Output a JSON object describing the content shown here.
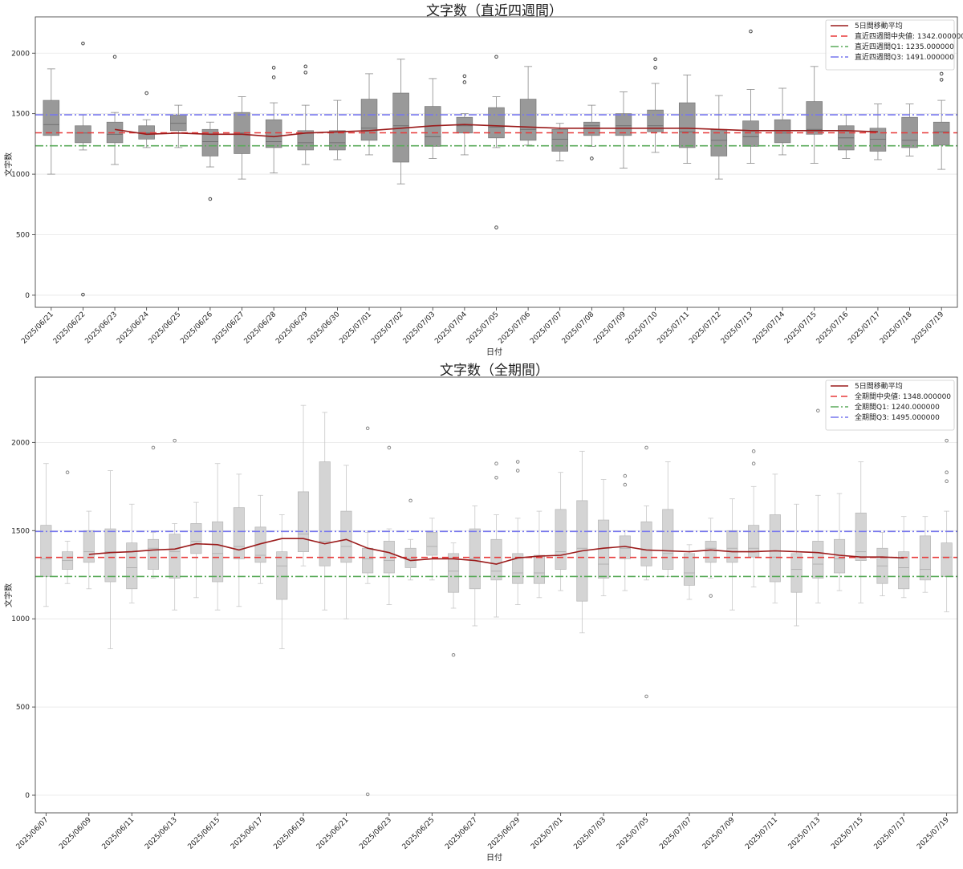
{
  "chart_data": [
    {
      "type": "box",
      "title": "文字数（直近四週間）",
      "xlabel": "日付",
      "ylabel": "文字数",
      "ylim": [
        -100,
        2300
      ],
      "yticks": [
        0,
        500,
        1000,
        1500,
        2000
      ],
      "grid": "y",
      "legend_placement": "top-right",
      "box_color": "#999999",
      "categories": [
        "2025/06/21",
        "2025/06/22",
        "2025/06/23",
        "2025/06/24",
        "2025/06/25",
        "2025/06/26",
        "2025/06/27",
        "2025/06/28",
        "2025/06/29",
        "2025/06/30",
        "2025/07/01",
        "2025/07/02",
        "2025/07/03",
        "2025/07/04",
        "2025/07/05",
        "2025/07/06",
        "2025/07/07",
        "2025/07/08",
        "2025/07/09",
        "2025/07/10",
        "2025/07/11",
        "2025/07/12",
        "2025/07/13",
        "2025/07/14",
        "2025/07/15",
        "2025/07/16",
        "2025/07/17",
        "2025/07/18",
        "2025/07/19"
      ],
      "tick_labels": [
        "2025/06/21",
        "2025/06/22",
        "2025/06/23",
        "2025/06/24",
        "2025/06/25",
        "2025/06/26",
        "2025/06/27",
        "2025/06/28",
        "2025/06/29",
        "2025/06/30",
        "2025/07/01",
        "2025/07/02",
        "2025/07/03",
        "2025/07/04",
        "2025/07/05",
        "2025/07/06",
        "2025/07/07",
        "2025/07/08",
        "2025/07/09",
        "2025/07/10",
        "2025/07/11",
        "2025/07/12",
        "2025/07/13",
        "2025/07/14",
        "2025/07/15",
        "2025/07/16",
        "2025/07/17",
        "2025/07/18",
        "2025/07/19"
      ],
      "boxes": [
        {
          "q1": 1320,
          "med": 1410,
          "q3": 1610,
          "wl": 1000,
          "wh": 1870,
          "out": []
        },
        {
          "q1": 1260,
          "med": 1340,
          "q3": 1400,
          "wl": 1200,
          "wh": 1490,
          "out": [
            2080,
            5
          ]
        },
        {
          "q1": 1260,
          "med": 1330,
          "q3": 1430,
          "wl": 1080,
          "wh": 1510,
          "out": [
            1970
          ]
        },
        {
          "q1": 1290,
          "med": 1340,
          "q3": 1400,
          "wl": 1220,
          "wh": 1450,
          "out": [
            1670
          ]
        },
        {
          "q1": 1360,
          "med": 1420,
          "q3": 1490,
          "wl": 1220,
          "wh": 1570,
          "out": []
        },
        {
          "q1": 1150,
          "med": 1270,
          "q3": 1370,
          "wl": 1060,
          "wh": 1430,
          "out": [
            795
          ]
        },
        {
          "q1": 1170,
          "med": 1340,
          "q3": 1510,
          "wl": 960,
          "wh": 1640,
          "out": []
        },
        {
          "q1": 1220,
          "med": 1270,
          "q3": 1450,
          "wl": 1010,
          "wh": 1590,
          "out": [
            1880,
            1800
          ]
        },
        {
          "q1": 1200,
          "med": 1260,
          "q3": 1360,
          "wl": 1080,
          "wh": 1570,
          "out": [
            1890,
            1840
          ]
        },
        {
          "q1": 1200,
          "med": 1260,
          "q3": 1360,
          "wl": 1120,
          "wh": 1610,
          "out": []
        },
        {
          "q1": 1280,
          "med": 1380,
          "q3": 1620,
          "wl": 1160,
          "wh": 1830,
          "out": []
        },
        {
          "q1": 1100,
          "med": 1400,
          "q3": 1670,
          "wl": 920,
          "wh": 1950,
          "out": []
        },
        {
          "q1": 1230,
          "med": 1310,
          "q3": 1560,
          "wl": 1130,
          "wh": 1790,
          "out": []
        },
        {
          "q1": 1340,
          "med": 1400,
          "q3": 1470,
          "wl": 1160,
          "wh": 1500,
          "out": [
            1810,
            1760
          ]
        },
        {
          "q1": 1300,
          "med": 1390,
          "q3": 1550,
          "wl": 1220,
          "wh": 1640,
          "out": [
            1970,
            560
          ]
        },
        {
          "q1": 1280,
          "med": 1370,
          "q3": 1620,
          "wl": 1240,
          "wh": 1890,
          "out": []
        },
        {
          "q1": 1190,
          "med": 1290,
          "q3": 1370,
          "wl": 1110,
          "wh": 1420,
          "out": []
        },
        {
          "q1": 1320,
          "med": 1400,
          "q3": 1430,
          "wl": 1230,
          "wh": 1570,
          "out": [
            1130
          ]
        },
        {
          "q1": 1320,
          "med": 1400,
          "q3": 1500,
          "wl": 1050,
          "wh": 1680,
          "out": []
        },
        {
          "q1": 1350,
          "med": 1400,
          "q3": 1530,
          "wl": 1180,
          "wh": 1750,
          "out": [
            1950,
            1880
          ]
        },
        {
          "q1": 1220,
          "med": 1350,
          "q3": 1590,
          "wl": 1090,
          "wh": 1820,
          "out": []
        },
        {
          "q1": 1150,
          "med": 1280,
          "q3": 1370,
          "wl": 960,
          "wh": 1650,
          "out": []
        },
        {
          "q1": 1230,
          "med": 1310,
          "q3": 1440,
          "wl": 1090,
          "wh": 1700,
          "out": [
            2180
          ]
        },
        {
          "q1": 1260,
          "med": 1340,
          "q3": 1450,
          "wl": 1160,
          "wh": 1710,
          "out": []
        },
        {
          "q1": 1330,
          "med": 1370,
          "q3": 1600,
          "wl": 1090,
          "wh": 1890,
          "out": []
        },
        {
          "q1": 1200,
          "med": 1300,
          "q3": 1400,
          "wl": 1130,
          "wh": 1490,
          "out": []
        },
        {
          "q1": 1190,
          "med": 1290,
          "q3": 1380,
          "wl": 1120,
          "wh": 1580,
          "out": []
        },
        {
          "q1": 1220,
          "med": 1280,
          "q3": 1470,
          "wl": 1150,
          "wh": 1580,
          "out": []
        },
        {
          "q1": 1240,
          "med": 1350,
          "q3": 1430,
          "wl": 1040,
          "wh": 1610,
          "out": [
            1830,
            1780
          ]
        }
      ],
      "series": [
        {
          "name": "5日間移動平均",
          "kind": "line",
          "color": "#9b1b1b",
          "values": [
            null,
            null,
            1370,
            1330,
            1340,
            1330,
            1330,
            1310,
            1340,
            1350,
            1360,
            1380,
            1400,
            1410,
            1400,
            1390,
            1380,
            1380,
            1380,
            1380,
            1380,
            1370,
            1360,
            1360,
            1360,
            1360,
            1350,
            null,
            null
          ]
        },
        {
          "name": "直近四週間中央値: 1342.000000",
          "kind": "hline",
          "value": 1342,
          "color": "#e83a3a",
          "dash": "8 5"
        },
        {
          "name": "直近四週間Q1: 1235.000000",
          "kind": "hline",
          "value": 1235,
          "color": "#5aaa5a",
          "dash": "10 3 2 3"
        },
        {
          "name": "直近四週間Q3: 1491.000000",
          "kind": "hline",
          "value": 1491,
          "color": "#7777ee",
          "dash": "10 3 2 3"
        }
      ]
    },
    {
      "type": "box",
      "title": "文字数（全期間）",
      "xlabel": "日付",
      "ylabel": "文字数",
      "ylim": [
        -100,
        2370
      ],
      "yticks": [
        0,
        500,
        1000,
        1500,
        2000
      ],
      "grid": "y",
      "legend_placement": "top-right",
      "box_color": "#d4d4d4",
      "categories": [
        "2025/06/07",
        "2025/06/08",
        "2025/06/09",
        "2025/06/10",
        "2025/06/11",
        "2025/06/12",
        "2025/06/13",
        "2025/06/14",
        "2025/06/15",
        "2025/06/16",
        "2025/06/17",
        "2025/06/18",
        "2025/06/19",
        "2025/06/20",
        "2025/06/21",
        "2025/06/22",
        "2025/06/23",
        "2025/06/24",
        "2025/06/25",
        "2025/06/26",
        "2025/06/27",
        "2025/06/28",
        "2025/06/29",
        "2025/06/30",
        "2025/07/01",
        "2025/07/02",
        "2025/07/03",
        "2025/07/04",
        "2025/07/05",
        "2025/07/06",
        "2025/07/07",
        "2025/07/08",
        "2025/07/09",
        "2025/07/10",
        "2025/07/11",
        "2025/07/12",
        "2025/07/13",
        "2025/07/14",
        "2025/07/15",
        "2025/07/16",
        "2025/07/17",
        "2025/07/18",
        "2025/07/19"
      ],
      "tick_labels": [
        "2025/06/07",
        "2025/06/09",
        "2025/06/11",
        "2025/06/13",
        "2025/06/15",
        "2025/06/17",
        "2025/06/19",
        "2025/06/21",
        "2025/06/23",
        "2025/06/25",
        "2025/06/27",
        "2025/06/29",
        "2025/07/01",
        "2025/07/03",
        "2025/07/05",
        "2025/07/07",
        "2025/07/09",
        "2025/07/11",
        "2025/07/13",
        "2025/07/15",
        "2025/07/17",
        "2025/07/19"
      ],
      "boxes": [
        {
          "q1": 1240,
          "med": 1340,
          "q3": 1530,
          "wl": 1070,
          "wh": 1880,
          "out": []
        },
        {
          "q1": 1280,
          "med": 1330,
          "q3": 1380,
          "wl": 1200,
          "wh": 1440,
          "out": [
            1830
          ]
        },
        {
          "q1": 1320,
          "med": 1380,
          "q3": 1500,
          "wl": 1170,
          "wh": 1610,
          "out": []
        },
        {
          "q1": 1210,
          "med": 1380,
          "q3": 1510,
          "wl": 830,
          "wh": 1840,
          "out": []
        },
        {
          "q1": 1170,
          "med": 1290,
          "q3": 1430,
          "wl": 1090,
          "wh": 1650,
          "out": []
        },
        {
          "q1": 1280,
          "med": 1400,
          "q3": 1450,
          "wl": 1230,
          "wh": 1490,
          "out": [
            1970
          ]
        },
        {
          "q1": 1230,
          "med": 1380,
          "q3": 1480,
          "wl": 1050,
          "wh": 1540,
          "out": [
            2010
          ]
        },
        {
          "q1": 1370,
          "med": 1440,
          "q3": 1540,
          "wl": 1120,
          "wh": 1660,
          "out": []
        },
        {
          "q1": 1210,
          "med": 1370,
          "q3": 1550,
          "wl": 1050,
          "wh": 1880,
          "out": []
        },
        {
          "q1": 1340,
          "med": 1410,
          "q3": 1630,
          "wl": 1070,
          "wh": 1820,
          "out": []
        },
        {
          "q1": 1320,
          "med": 1360,
          "q3": 1520,
          "wl": 1200,
          "wh": 1700,
          "out": []
        },
        {
          "q1": 1110,
          "med": 1300,
          "q3": 1380,
          "wl": 830,
          "wh": 1590,
          "out": []
        },
        {
          "q1": 1380,
          "med": 1480,
          "q3": 1720,
          "wl": 1300,
          "wh": 2210,
          "out": []
        },
        {
          "q1": 1300,
          "med": 1440,
          "q3": 1890,
          "wl": 1050,
          "wh": 2170,
          "out": []
        },
        {
          "q1": 1320,
          "med": 1410,
          "q3": 1610,
          "wl": 1000,
          "wh": 1870,
          "out": []
        },
        {
          "q1": 1260,
          "med": 1340,
          "q3": 1400,
          "wl": 1200,
          "wh": 1490,
          "out": [
            2080,
            5
          ]
        },
        {
          "q1": 1260,
          "med": 1330,
          "q3": 1440,
          "wl": 1080,
          "wh": 1510,
          "out": [
            1970
          ]
        },
        {
          "q1": 1290,
          "med": 1340,
          "q3": 1400,
          "wl": 1220,
          "wh": 1450,
          "out": [
            1670
          ]
        },
        {
          "q1": 1360,
          "med": 1410,
          "q3": 1490,
          "wl": 1220,
          "wh": 1570,
          "out": []
        },
        {
          "q1": 1150,
          "med": 1270,
          "q3": 1370,
          "wl": 1060,
          "wh": 1430,
          "out": [
            795
          ]
        },
        {
          "q1": 1170,
          "med": 1340,
          "q3": 1510,
          "wl": 960,
          "wh": 1640,
          "out": []
        },
        {
          "q1": 1220,
          "med": 1270,
          "q3": 1450,
          "wl": 1010,
          "wh": 1590,
          "out": [
            1880,
            1800
          ]
        },
        {
          "q1": 1200,
          "med": 1260,
          "q3": 1370,
          "wl": 1080,
          "wh": 1570,
          "out": [
            1890,
            1840
          ]
        },
        {
          "q1": 1200,
          "med": 1260,
          "q3": 1360,
          "wl": 1120,
          "wh": 1610,
          "out": []
        },
        {
          "q1": 1280,
          "med": 1380,
          "q3": 1620,
          "wl": 1160,
          "wh": 1830,
          "out": []
        },
        {
          "q1": 1100,
          "med": 1400,
          "q3": 1670,
          "wl": 920,
          "wh": 1950,
          "out": []
        },
        {
          "q1": 1230,
          "med": 1310,
          "q3": 1560,
          "wl": 1130,
          "wh": 1790,
          "out": []
        },
        {
          "q1": 1340,
          "med": 1400,
          "q3": 1470,
          "wl": 1160,
          "wh": 1500,
          "out": [
            1810,
            1760
          ]
        },
        {
          "q1": 1300,
          "med": 1390,
          "q3": 1550,
          "wl": 1220,
          "wh": 1640,
          "out": [
            1970,
            560
          ]
        },
        {
          "q1": 1280,
          "med": 1370,
          "q3": 1620,
          "wl": 1240,
          "wh": 1890,
          "out": []
        },
        {
          "q1": 1190,
          "med": 1260,
          "q3": 1370,
          "wl": 1110,
          "wh": 1420,
          "out": []
        },
        {
          "q1": 1320,
          "med": 1400,
          "q3": 1440,
          "wl": 1230,
          "wh": 1570,
          "out": [
            1130
          ]
        },
        {
          "q1": 1320,
          "med": 1400,
          "q3": 1500,
          "wl": 1050,
          "wh": 1680,
          "out": []
        },
        {
          "q1": 1350,
          "med": 1400,
          "q3": 1530,
          "wl": 1180,
          "wh": 1750,
          "out": [
            1950,
            1880
          ]
        },
        {
          "q1": 1210,
          "med": 1350,
          "q3": 1590,
          "wl": 1090,
          "wh": 1820,
          "out": []
        },
        {
          "q1": 1150,
          "med": 1280,
          "q3": 1370,
          "wl": 960,
          "wh": 1650,
          "out": []
        },
        {
          "q1": 1230,
          "med": 1310,
          "q3": 1440,
          "wl": 1090,
          "wh": 1700,
          "out": [
            2180
          ]
        },
        {
          "q1": 1260,
          "med": 1340,
          "q3": 1450,
          "wl": 1160,
          "wh": 1710,
          "out": []
        },
        {
          "q1": 1330,
          "med": 1380,
          "q3": 1600,
          "wl": 1090,
          "wh": 1890,
          "out": []
        },
        {
          "q1": 1200,
          "med": 1300,
          "q3": 1400,
          "wl": 1130,
          "wh": 1490,
          "out": []
        },
        {
          "q1": 1170,
          "med": 1290,
          "q3": 1380,
          "wl": 1120,
          "wh": 1580,
          "out": []
        },
        {
          "q1": 1220,
          "med": 1280,
          "q3": 1470,
          "wl": 1150,
          "wh": 1580,
          "out": []
        },
        {
          "q1": 1240,
          "med": 1350,
          "q3": 1430,
          "wl": 1040,
          "wh": 1610,
          "out": [
            2010,
            1830,
            1780
          ]
        }
      ],
      "series": [
        {
          "name": "5日間移動平均",
          "kind": "line",
          "color": "#9b1b1b",
          "values": [
            null,
            null,
            1365,
            1375,
            1380,
            1390,
            1395,
            1425,
            1420,
            1390,
            1425,
            1455,
            1455,
            1425,
            1450,
            1400,
            1375,
            1330,
            1340,
            1340,
            1330,
            1310,
            1345,
            1355,
            1360,
            1385,
            1400,
            1410,
            1390,
            1385,
            1380,
            1390,
            1380,
            1380,
            1385,
            1380,
            1375,
            1360,
            1350,
            1350,
            1345,
            null,
            null
          ]
        },
        {
          "name": "全期間中央値: 1348.000000",
          "kind": "hline",
          "value": 1348,
          "color": "#e83a3a",
          "dash": "8 5"
        },
        {
          "name": "全期間Q1: 1240.000000",
          "kind": "hline",
          "value": 1240,
          "color": "#5aaa5a",
          "dash": "10 3 2 3"
        },
        {
          "name": "全期間Q3: 1495.000000",
          "kind": "hline",
          "value": 1495,
          "color": "#7777ee",
          "dash": "10 3 2 3"
        }
      ]
    }
  ]
}
